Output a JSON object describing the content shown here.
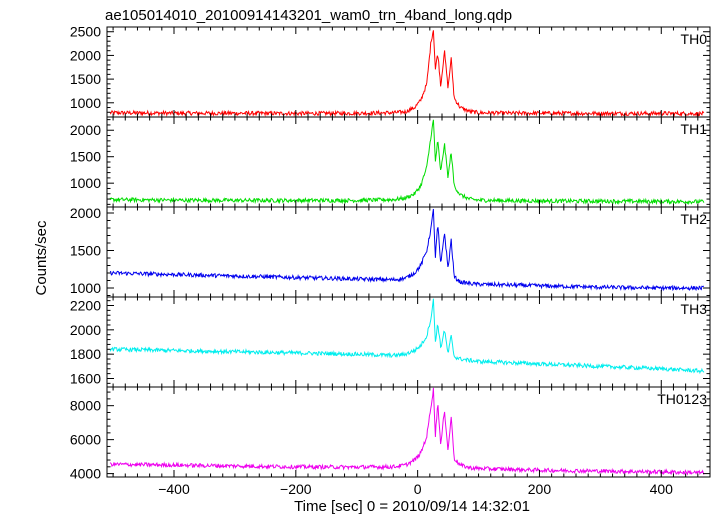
{
  "chart_data": {
    "type": "line",
    "title": "ae105014010_20100914143201_wam0_trn_4band_long.qdp",
    "xlabel": "Time [sec] 0 = 2010/09/14 14:32:01",
    "ylabel": "Counts/sec",
    "xlim": [
      -510,
      480
    ],
    "xticks": [
      -400,
      -200,
      0,
      200,
      400
    ],
    "grid": false,
    "panels": [
      {
        "name": "TH0",
        "color": "#ff0000",
        "ylim": [
          700,
          2600
        ],
        "yticks": [
          1000,
          1500,
          2000,
          2500
        ],
        "x": [
          -500,
          -400,
          -300,
          -200,
          -100,
          -40,
          -20,
          -5,
          5,
          15,
          22,
          26,
          29,
          33,
          38,
          44,
          50,
          55,
          60,
          70,
          85,
          100,
          150,
          200,
          300,
          400,
          470
        ],
        "y": [
          790,
          780,
          780,
          775,
          780,
          790,
          810,
          900,
          1050,
          1400,
          2300,
          2550,
          1700,
          2050,
          1350,
          2100,
          1300,
          1950,
          1100,
          900,
          820,
          790,
          780,
          780,
          775,
          775,
          770
        ]
      },
      {
        "name": "TH1",
        "color": "#00dd00",
        "ylim": [
          550,
          2250
        ],
        "yticks": [
          1000,
          1500,
          2000
        ],
        "x": [
          -500,
          -400,
          -300,
          -200,
          -100,
          -40,
          -20,
          -5,
          5,
          15,
          22,
          26,
          29,
          33,
          38,
          44,
          50,
          55,
          60,
          70,
          85,
          100,
          150,
          200,
          300,
          400,
          470
        ],
        "y": [
          690,
          680,
          675,
          675,
          675,
          690,
          720,
          800,
          950,
          1300,
          1900,
          2200,
          1400,
          1800,
          1200,
          1750,
          1100,
          1600,
          950,
          780,
          700,
          680,
          670,
          665,
          660,
          655,
          650
        ]
      },
      {
        "name": "TH2",
        "color": "#0000ee",
        "ylim": [
          880,
          2080
        ],
        "yticks": [
          1000,
          1500,
          2000
        ],
        "x": [
          -500,
          -400,
          -300,
          -200,
          -100,
          -40,
          -20,
          -5,
          5,
          15,
          22,
          26,
          29,
          33,
          38,
          44,
          50,
          55,
          60,
          70,
          85,
          100,
          150,
          200,
          300,
          400,
          470
        ],
        "y": [
          1200,
          1180,
          1160,
          1140,
          1120,
          1110,
          1130,
          1200,
          1300,
          1500,
          1800,
          2050,
          1400,
          1850,
          1300,
          1750,
          1250,
          1650,
          1150,
          1080,
          1060,
          1050,
          1040,
          1030,
          1010,
          1000,
          1000
        ]
      },
      {
        "name": "TH3",
        "color": "#00eeee",
        "ylim": [
          1530,
          2270
        ],
        "yticks": [
          1600,
          1800,
          2000,
          2200
        ],
        "x": [
          -500,
          -400,
          -300,
          -200,
          -100,
          -40,
          -20,
          -5,
          5,
          15,
          22,
          26,
          29,
          33,
          38,
          44,
          50,
          55,
          60,
          70,
          85,
          100,
          150,
          200,
          300,
          400,
          470
        ],
        "y": [
          1840,
          1830,
          1820,
          1810,
          1800,
          1790,
          1800,
          1830,
          1870,
          1950,
          2100,
          2250,
          1900,
          2050,
          1850,
          2000,
          1800,
          1950,
          1780,
          1760,
          1750,
          1740,
          1730,
          1720,
          1700,
          1680,
          1660
        ]
      },
      {
        "name": "TH0123",
        "color": "#ee00ee",
        "ylim": [
          3800,
          9100
        ],
        "yticks": [
          4000,
          6000,
          8000
        ],
        "x": [
          -500,
          -400,
          -300,
          -200,
          -100,
          -40,
          -20,
          -5,
          5,
          15,
          22,
          26,
          29,
          33,
          38,
          44,
          50,
          55,
          60,
          70,
          85,
          100,
          150,
          200,
          300,
          400,
          470
        ],
        "y": [
          4550,
          4500,
          4450,
          4400,
          4380,
          4400,
          4500,
          4800,
          5200,
          6200,
          8000,
          9000,
          6200,
          8200,
          5600,
          7800,
          5300,
          7400,
          4900,
          4500,
          4350,
          4300,
          4250,
          4200,
          4150,
          4100,
          4050
        ]
      }
    ]
  }
}
